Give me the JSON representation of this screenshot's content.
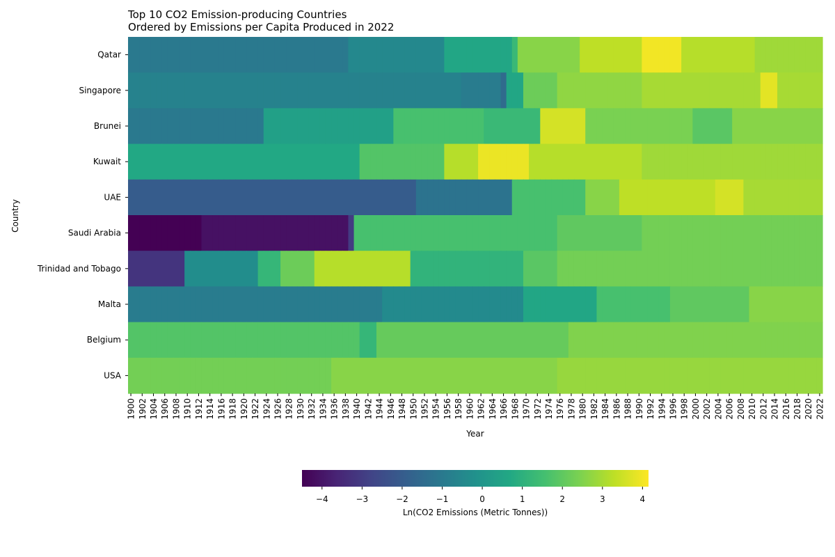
{
  "chart_data": {
    "type": "heatmap",
    "title": "Top 10 CO2 Emission-producing Countries",
    "subtitle": "Ordered by Emissions per Capita Produced in 2022",
    "xlabel": "Year",
    "ylabel": "Country",
    "colorbar_label": "Ln(CO2 Emissions (Metric Tonnes))",
    "colormap": "viridis",
    "color_range": [
      -4.5,
      4.15
    ],
    "colorbar_ticks": [
      -4,
      -3,
      -2,
      -1,
      0,
      1,
      2,
      3,
      4
    ],
    "colorbar_tick_labels": [
      "−4",
      "−3",
      "−2",
      "−1",
      "0",
      "1",
      "2",
      "3",
      "4"
    ],
    "x_start": 1900,
    "x_end": 2022,
    "x_tick_step": 2,
    "countries": [
      "Qatar",
      "Singapore",
      "Brunei",
      "Kuwait",
      "UAE",
      "Saudi Arabia",
      "Trinidad and Tobago",
      "Malta",
      "Belgium",
      "USA"
    ],
    "row_segments": [
      [
        [
          1900,
          1938,
          -1.0
        ],
        [
          1939,
          1955,
          -0.5
        ],
        [
          1956,
          1967,
          0.6
        ],
        [
          1968,
          1968,
          1.3
        ],
        [
          1969,
          1979,
          2.6
        ],
        [
          1980,
          1990,
          3.3
        ],
        [
          1991,
          1997,
          4.0
        ],
        [
          1998,
          2010,
          3.2
        ],
        [
          2011,
          2022,
          2.9
        ]
      ],
      [
        [
          1900,
          1958,
          -0.7
        ],
        [
          1959,
          1965,
          -0.9
        ],
        [
          1966,
          1966,
          -1.5
        ],
        [
          1967,
          1969,
          0.6
        ],
        [
          1970,
          1975,
          2.2
        ],
        [
          1976,
          1990,
          2.7
        ],
        [
          1991,
          2011,
          3.0
        ],
        [
          2012,
          2014,
          3.8
        ],
        [
          2015,
          2022,
          3.0
        ]
      ],
      [
        [
          1900,
          1923,
          -1.0
        ],
        [
          1924,
          1946,
          0.4
        ],
        [
          1947,
          1962,
          1.6
        ],
        [
          1963,
          1972,
          1.3
        ],
        [
          1973,
          1980,
          3.6
        ],
        [
          1981,
          1999,
          2.4
        ],
        [
          2000,
          2006,
          1.9
        ],
        [
          2007,
          2022,
          2.6
        ]
      ],
      [
        [
          1900,
          1940,
          0.7
        ],
        [
          1941,
          1955,
          1.8
        ],
        [
          1956,
          1961,
          3.2
        ],
        [
          1962,
          1970,
          3.9
        ],
        [
          1971,
          1990,
          3.2
        ],
        [
          1991,
          2022,
          2.9
        ]
      ],
      [
        [
          1900,
          1950,
          -2.0
        ],
        [
          1951,
          1967,
          -1.2
        ],
        [
          1968,
          1980,
          1.6
        ],
        [
          1981,
          1986,
          2.6
        ],
        [
          1987,
          2003,
          3.3
        ],
        [
          2004,
          2008,
          3.6
        ],
        [
          2009,
          2022,
          3.0
        ]
      ],
      [
        [
          1900,
          1912,
          -4.5
        ],
        [
          1913,
          1938,
          -4.1
        ],
        [
          1939,
          1939,
          -3.0
        ],
        [
          1940,
          1975,
          1.6
        ],
        [
          1976,
          1990,
          2.0
        ],
        [
          1991,
          2022,
          2.3
        ]
      ],
      [
        [
          1900,
          1909,
          -3.2
        ],
        [
          1910,
          1922,
          -0.3
        ],
        [
          1923,
          1926,
          1.2
        ],
        [
          1927,
          1932,
          2.2
        ],
        [
          1933,
          1949,
          3.2
        ],
        [
          1950,
          1969,
          1.1
        ],
        [
          1970,
          1975,
          1.9
        ],
        [
          1976,
          2022,
          2.3
        ]
      ],
      [
        [
          1900,
          1944,
          -0.9
        ],
        [
          1945,
          1969,
          -0.4
        ],
        [
          1970,
          1982,
          0.6
        ],
        [
          1983,
          1995,
          1.6
        ],
        [
          1996,
          2009,
          2.0
        ],
        [
          2010,
          2022,
          2.6
        ]
      ],
      [
        [
          1900,
          1940,
          1.8
        ],
        [
          1941,
          1943,
          1.2
        ],
        [
          1944,
          1977,
          2.1
        ],
        [
          1978,
          2022,
          2.5
        ]
      ],
      [
        [
          1900,
          1935,
          2.3
        ],
        [
          1936,
          1975,
          2.6
        ],
        [
          1976,
          2022,
          2.8
        ]
      ]
    ]
  }
}
